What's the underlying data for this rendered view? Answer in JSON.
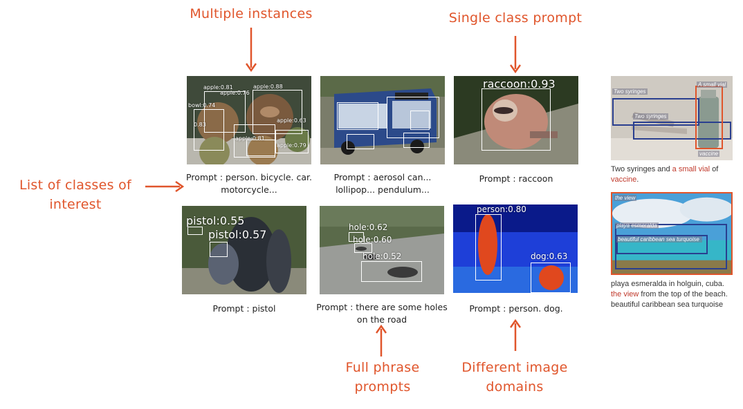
{
  "callouts": {
    "multiple_instances": "Multiple instances",
    "single_class_prompt": "Single class prompt",
    "list_of_classes": "List of classes of interest",
    "full_phrase_prompts": "Full phrase prompts",
    "different_image_domains": "Different image domains"
  },
  "panels": {
    "apples": {
      "caption": "Prompt : person. bicycle. car. motorcycle...",
      "labels": [
        "apple:0.81",
        "apple:0.76",
        "apple:0.88",
        "bowl:0.74",
        "apple:0.63",
        "0.83",
        "apple:0.81",
        "apple:0.79"
      ]
    },
    "bus": {
      "caption": "Prompt : aerosol can... lollipop... pendulum..."
    },
    "raccoon": {
      "caption": "Prompt : raccoon",
      "label": "raccoon:0.93"
    },
    "pistol": {
      "caption": "Prompt : pistol",
      "labels": [
        "pistol:0.55",
        "pistol:0.57"
      ]
    },
    "road": {
      "caption": "Prompt : there are some holes on the road",
      "labels": [
        "hole:0.62",
        "hole:0.60",
        "hole:0.52"
      ]
    },
    "thermal": {
      "caption": "Prompt : person. dog.",
      "labels": [
        "person:0.80",
        "dog:0.63"
      ]
    }
  },
  "right": {
    "top": {
      "tags": [
        "Two syringes",
        "Two syringes",
        "A small vial",
        "vaccine"
      ],
      "caption": {
        "part1": "Two syringes",
        "part2": " and ",
        "part3": "a small vial",
        "part4": " of ",
        "part5": "vaccine",
        "part6": "."
      }
    },
    "bottom": {
      "tags": [
        "the view",
        "playa esmeralda",
        "beautiful caribbean sea turquoise"
      ],
      "caption": {
        "part1": "playa esmeralda",
        "part2": " in holguin, cuba. ",
        "part3": "the view",
        "part4": " from the top of the beach. ",
        "part5": "beautiful caribbean sea turquoise"
      }
    }
  },
  "colors": {
    "accent": "#e0552b",
    "box_blue": "#2a3f8f",
    "box_orange": "#e0552b"
  }
}
